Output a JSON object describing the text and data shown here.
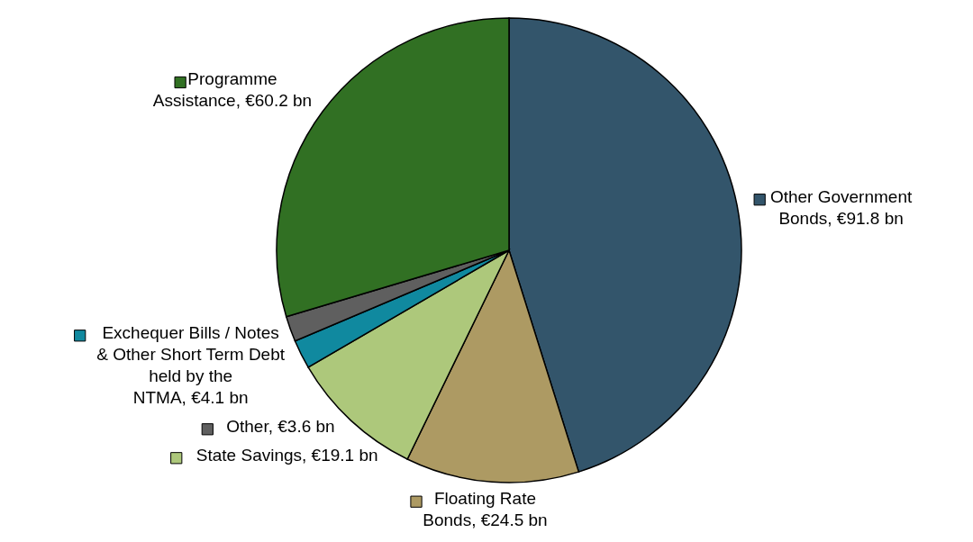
{
  "chart_data": {
    "type": "pie",
    "categories": [
      "Other Government Bonds",
      "Floating Rate Bonds",
      "State Savings",
      "Exchequer Bills / Notes & Other Short Term Debt held by the NTMA",
      "Other",
      "Programme Assistance"
    ],
    "values": [
      91.8,
      24.5,
      19.1,
      4.1,
      3.6,
      60.2
    ],
    "value_labels": [
      "€91.8 bn",
      "€24.5 bn",
      "€19.1 bn",
      "€4.1 bn",
      "€3.6 bn",
      "€60.2 bn"
    ],
    "colors": [
      "#33556b",
      "#ad9a63",
      "#adc87b",
      "#10899f",
      "#5f5f5f",
      "#317023"
    ],
    "legend": "left"
  }
}
